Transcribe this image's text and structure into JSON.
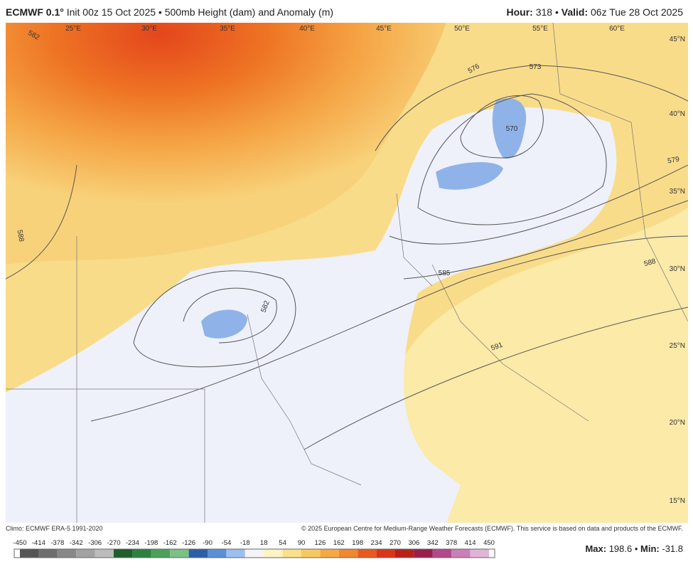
{
  "header": {
    "model": "ECMWF 0.1°",
    "description": "Init 00z 15 Oct 2025 • 500mb Height (dam) and Anomaly (m)",
    "hour_label": "Hour:",
    "hour": "318",
    "valid_label": "Valid:",
    "valid": "06z Tue 28 Oct 2025"
  },
  "map": {
    "longitude_labels": [
      "25°E",
      "30°E",
      "35°E",
      "40°E",
      "45°E",
      "50°E",
      "55°E",
      "60°E"
    ],
    "latitude_labels": [
      "45°N",
      "40°N",
      "35°N",
      "30°N",
      "25°N",
      "20°N",
      "15°N"
    ],
    "contour_labels": [
      "582",
      "576",
      "573",
      "570",
      "579",
      "588",
      "585",
      "582",
      "591",
      "588"
    ]
  },
  "footer": {
    "climo": "Climo: ECMWF ERA-5 1991-2020",
    "copyright": "© 2025 European Centre for Medium-Range Weather Forecasts (ECMWF). This service is based on data and products of the ECMWF."
  },
  "colorbar": {
    "ticks": [
      -450,
      -414,
      -378,
      -342,
      -306,
      -270,
      -234,
      -198,
      -162,
      -126,
      -90,
      -54,
      -18,
      18,
      54,
      90,
      126,
      162,
      198,
      234,
      270,
      306,
      342,
      378,
      414,
      450
    ],
    "colors": [
      "#555555",
      "#6e6e6e",
      "#888888",
      "#a2a2a2",
      "#bcbcbc",
      "#1f5e2e",
      "#2e8040",
      "#4da05a",
      "#7cc085",
      "#2d5fa8",
      "#5a8fd6",
      "#9dbff0",
      "#f4f4f8",
      "#fdf3c4",
      "#fbe08c",
      "#f8c860",
      "#f5a844",
      "#f08830",
      "#e85a1e",
      "#d8361a",
      "#b8201a",
      "#9a1e4a",
      "#b04a8a",
      "#c880b8",
      "#e0b4d8"
    ]
  },
  "stats": {
    "max_label": "Max:",
    "max": "198.6",
    "min_label": "Min:",
    "min": "-31.8"
  }
}
